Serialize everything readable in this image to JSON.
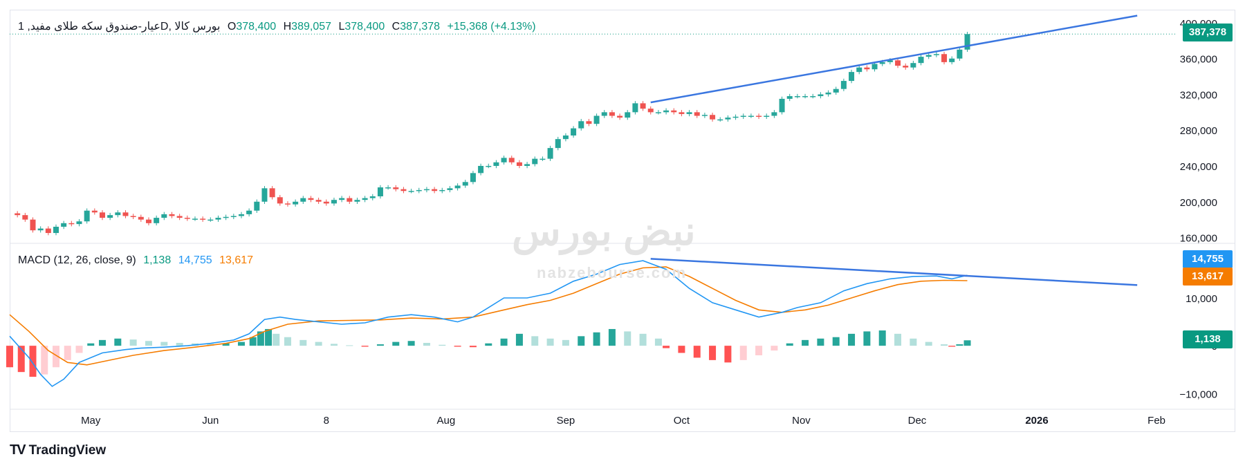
{
  "header": {
    "symbol": "1 ,عیار-صندوق سکه طلای مفید",
    "interval": "D",
    "exchange": "بورس کالا",
    "open_label": "O",
    "open": "378,400",
    "high_label": "H",
    "high": "389,057",
    "low_label": "L",
    "low": "378,400",
    "close_label": "C",
    "close": "387,378",
    "change": "+15,368 (+4.13%)"
  },
  "macd_header": {
    "title": "MACD (12, 26, close, 9)",
    "hist": "1,138",
    "macd": "14,755",
    "signal": "13,617"
  },
  "price_tags": {
    "last_price": "387,378",
    "macd": "14,755",
    "signal": "13,617",
    "hist": "1,138"
  },
  "watermark": {
    "logo": "نبض بورس",
    "site": "nabzebourse.com"
  },
  "branding": {
    "logo_text": "TradingView"
  },
  "colors": {
    "up": "#26a69a",
    "down": "#ef5350",
    "macd_line": "#2196f3",
    "signal_line": "#f57c00",
    "trendline": "#3a76e0",
    "hist_up_strong": "#26a69a",
    "hist_up_weak": "#b2dfdb",
    "hist_down_strong": "#ff5252",
    "hist_down_weak": "#ffcdd2"
  },
  "chart_data": [
    {
      "type": "candlestick",
      "title": "",
      "y_ticks": [
        160000,
        200000,
        240000,
        280000,
        320000,
        360000,
        400000
      ],
      "ylim": [
        155000,
        410000
      ],
      "x_ticks": [
        {
          "label": "May",
          "day": 21
        },
        {
          "label": "Jun",
          "day": 52
        },
        {
          "label": "8",
          "day": 82
        },
        {
          "label": "Aug",
          "day": 113
        },
        {
          "label": "Sep",
          "day": 144
        },
        {
          "label": "Oct",
          "day": 174
        },
        {
          "label": "Nov",
          "day": 205
        },
        {
          "label": "Dec",
          "day": 235
        },
        {
          "label": "2026",
          "day": 266
        },
        {
          "label": "Feb",
          "day": 297
        }
      ],
      "xlim": [
        0,
        302
      ],
      "closes": [
        [
          0,
          187000
        ],
        [
          2,
          185000
        ],
        [
          4,
          180000
        ],
        [
          6,
          168000
        ],
        [
          8,
          170000
        ],
        [
          10,
          165000
        ],
        [
          12,
          172000
        ],
        [
          14,
          176000
        ],
        [
          16,
          175000
        ],
        [
          18,
          178000
        ],
        [
          20,
          190000
        ],
        [
          22,
          188000
        ],
        [
          24,
          182000
        ],
        [
          26,
          185000
        ],
        [
          28,
          188000
        ],
        [
          30,
          184000
        ],
        [
          32,
          183000
        ],
        [
          34,
          180000
        ],
        [
          36,
          176000
        ],
        [
          38,
          182000
        ],
        [
          40,
          186000
        ],
        [
          42,
          184000
        ],
        [
          44,
          182000
        ],
        [
          46,
          181000
        ],
        [
          48,
          181000
        ],
        [
          50,
          180000
        ],
        [
          52,
          180000
        ],
        [
          54,
          182000
        ],
        [
          56,
          183000
        ],
        [
          58,
          184000
        ],
        [
          60,
          186000
        ],
        [
          62,
          190000
        ],
        [
          64,
          200000
        ],
        [
          66,
          215000
        ],
        [
          68,
          205000
        ],
        [
          70,
          198000
        ],
        [
          72,
          197000
        ],
        [
          74,
          200000
        ],
        [
          76,
          204000
        ],
        [
          78,
          202000
        ],
        [
          80,
          200000
        ],
        [
          82,
          198000
        ],
        [
          84,
          202000
        ],
        [
          86,
          204000
        ],
        [
          88,
          200000
        ],
        [
          90,
          202000
        ],
        [
          92,
          204000
        ],
        [
          94,
          206000
        ],
        [
          96,
          216000
        ],
        [
          98,
          216000
        ],
        [
          100,
          214000
        ],
        [
          102,
          212000
        ],
        [
          104,
          212000
        ],
        [
          106,
          213000
        ],
        [
          108,
          214000
        ],
        [
          110,
          212000
        ],
        [
          112,
          213000
        ],
        [
          114,
          215000
        ],
        [
          116,
          218000
        ],
        [
          118,
          222000
        ],
        [
          120,
          232000
        ],
        [
          122,
          240000
        ],
        [
          124,
          240000
        ],
        [
          126,
          244000
        ],
        [
          128,
          249000
        ],
        [
          130,
          244000
        ],
        [
          132,
          240000
        ],
        [
          134,
          242000
        ],
        [
          136,
          248000
        ],
        [
          138,
          248000
        ],
        [
          140,
          260000
        ],
        [
          142,
          270000
        ],
        [
          144,
          274000
        ],
        [
          146,
          282000
        ],
        [
          148,
          290000
        ],
        [
          150,
          287000
        ],
        [
          152,
          296000
        ],
        [
          154,
          300000
        ],
        [
          156,
          296000
        ],
        [
          158,
          294000
        ],
        [
          160,
          300000
        ],
        [
          162,
          310000
        ],
        [
          164,
          304000
        ],
        [
          166,
          300000
        ],
        [
          168,
          300000
        ],
        [
          170,
          302000
        ],
        [
          172,
          300000
        ],
        [
          174,
          298000
        ],
        [
          176,
          300000
        ],
        [
          178,
          296000
        ],
        [
          180,
          297000
        ],
        [
          182,
          292000
        ],
        [
          184,
          292000
        ],
        [
          186,
          294000
        ],
        [
          188,
          295000
        ],
        [
          190,
          296000
        ],
        [
          192,
          296000
        ],
        [
          194,
          295000
        ],
        [
          196,
          296000
        ],
        [
          198,
          300000
        ],
        [
          200,
          315000
        ],
        [
          202,
          318000
        ],
        [
          204,
          318000
        ],
        [
          206,
          318000
        ],
        [
          208,
          318000
        ],
        [
          210,
          320000
        ],
        [
          212,
          322000
        ],
        [
          214,
          326000
        ],
        [
          216,
          335000
        ],
        [
          218,
          345000
        ],
        [
          220,
          350000
        ],
        [
          222,
          348000
        ],
        [
          224,
          354000
        ],
        [
          226,
          356000
        ],
        [
          228,
          358000
        ],
        [
          230,
          352000
        ],
        [
          232,
          350000
        ],
        [
          234,
          355000
        ],
        [
          236,
          362000
        ],
        [
          238,
          364000
        ],
        [
          240,
          365000
        ],
        [
          242,
          356000
        ],
        [
          244,
          360000
        ],
        [
          246,
          370000
        ],
        [
          248,
          387378
        ]
      ]
    },
    {
      "type": "macd",
      "title": "MACD (12, 26, close, 9)",
      "y_ticks": [
        10000,
        0,
        -10000
      ],
      "ylim": [
        -13000,
        21000
      ],
      "xlim": [
        0,
        302
      ],
      "macd": [
        [
          0,
          2000
        ],
        [
          5,
          -2500
        ],
        [
          8,
          -6000
        ],
        [
          11,
          -8500
        ],
        [
          14,
          -7000
        ],
        [
          18,
          -3500
        ],
        [
          24,
          -1500
        ],
        [
          30,
          -800
        ],
        [
          34,
          -500
        ],
        [
          40,
          -300
        ],
        [
          46,
          0
        ],
        [
          52,
          500
        ],
        [
          58,
          1200
        ],
        [
          62,
          2500
        ],
        [
          64,
          4000
        ],
        [
          66,
          5500
        ],
        [
          70,
          6000
        ],
        [
          74,
          5500
        ],
        [
          80,
          5000
        ],
        [
          86,
          4500
        ],
        [
          92,
          4800
        ],
        [
          98,
          6000
        ],
        [
          104,
          6500
        ],
        [
          110,
          6000
        ],
        [
          116,
          5000
        ],
        [
          120,
          6000
        ],
        [
          124,
          8000
        ],
        [
          128,
          10000
        ],
        [
          134,
          10000
        ],
        [
          140,
          11000
        ],
        [
          146,
          13500
        ],
        [
          152,
          15000
        ],
        [
          158,
          17000
        ],
        [
          164,
          17800
        ],
        [
          170,
          16000
        ],
        [
          176,
          12000
        ],
        [
          182,
          9000
        ],
        [
          188,
          7500
        ],
        [
          194,
          6000
        ],
        [
          200,
          7000
        ],
        [
          204,
          8000
        ],
        [
          210,
          9000
        ],
        [
          216,
          11500
        ],
        [
          222,
          13000
        ],
        [
          228,
          14000
        ],
        [
          234,
          14500
        ],
        [
          240,
          14600
        ],
        [
          244,
          14000
        ],
        [
          248,
          14755
        ]
      ],
      "signal": [
        [
          0,
          6500
        ],
        [
          5,
          3000
        ],
        [
          10,
          -1000
        ],
        [
          15,
          -3500
        ],
        [
          20,
          -4000
        ],
        [
          26,
          -3000
        ],
        [
          32,
          -2000
        ],
        [
          40,
          -1000
        ],
        [
          48,
          -300
        ],
        [
          56,
          500
        ],
        [
          62,
          1500
        ],
        [
          66,
          3000
        ],
        [
          72,
          4500
        ],
        [
          80,
          5200
        ],
        [
          88,
          5300
        ],
        [
          96,
          5400
        ],
        [
          104,
          5800
        ],
        [
          112,
          5600
        ],
        [
          120,
          6000
        ],
        [
          128,
          7500
        ],
        [
          134,
          8600
        ],
        [
          140,
          9500
        ],
        [
          146,
          11000
        ],
        [
          152,
          13000
        ],
        [
          158,
          15000
        ],
        [
          164,
          16300
        ],
        [
          170,
          16500
        ],
        [
          176,
          14500
        ],
        [
          182,
          12000
        ],
        [
          188,
          9500
        ],
        [
          194,
          7500
        ],
        [
          200,
          7000
        ],
        [
          206,
          7500
        ],
        [
          212,
          8500
        ],
        [
          218,
          10000
        ],
        [
          224,
          11500
        ],
        [
          230,
          12800
        ],
        [
          236,
          13500
        ],
        [
          242,
          13700
        ],
        [
          248,
          13617
        ]
      ],
      "histogram": [
        [
          0,
          -4500
        ],
        [
          3,
          -5500
        ],
        [
          6,
          -6500
        ],
        [
          9,
          -6000
        ],
        [
          12,
          -4500
        ],
        [
          15,
          -3000
        ],
        [
          18,
          -1500
        ],
        [
          21,
          500
        ],
        [
          24,
          1200
        ],
        [
          28,
          1500
        ],
        [
          32,
          1300
        ],
        [
          36,
          1000
        ],
        [
          40,
          800
        ],
        [
          44,
          600
        ],
        [
          48,
          500
        ],
        [
          52,
          400
        ],
        [
          56,
          500
        ],
        [
          60,
          800
        ],
        [
          63,
          1800
        ],
        [
          65,
          3000
        ],
        [
          67,
          3500
        ],
        [
          69,
          2500
        ],
        [
          72,
          1800
        ],
        [
          76,
          1200
        ],
        [
          80,
          800
        ],
        [
          84,
          400
        ],
        [
          88,
          100
        ],
        [
          92,
          -200
        ],
        [
          96,
          300
        ],
        [
          100,
          800
        ],
        [
          104,
          1000
        ],
        [
          108,
          600
        ],
        [
          112,
          200
        ],
        [
          116,
          -200
        ],
        [
          120,
          -300
        ],
        [
          124,
          500
        ],
        [
          128,
          1500
        ],
        [
          132,
          2500
        ],
        [
          136,
          2000
        ],
        [
          140,
          1500
        ],
        [
          144,
          1200
        ],
        [
          148,
          2000
        ],
        [
          152,
          2800
        ],
        [
          156,
          3500
        ],
        [
          160,
          3000
        ],
        [
          164,
          2500
        ],
        [
          168,
          1500
        ],
        [
          170,
          -500
        ],
        [
          174,
          -1500
        ],
        [
          178,
          -2500
        ],
        [
          182,
          -3000
        ],
        [
          186,
          -3500
        ],
        [
          190,
          -3000
        ],
        [
          194,
          -2000
        ],
        [
          198,
          -1000
        ],
        [
          202,
          500
        ],
        [
          206,
          1200
        ],
        [
          210,
          1500
        ],
        [
          214,
          1800
        ],
        [
          218,
          2500
        ],
        [
          222,
          3000
        ],
        [
          226,
          3200
        ],
        [
          230,
          2500
        ],
        [
          234,
          1500
        ],
        [
          238,
          800
        ],
        [
          242,
          300
        ],
        [
          244,
          -200
        ],
        [
          246,
          300
        ],
        [
          248,
          1138
        ]
      ]
    }
  ]
}
